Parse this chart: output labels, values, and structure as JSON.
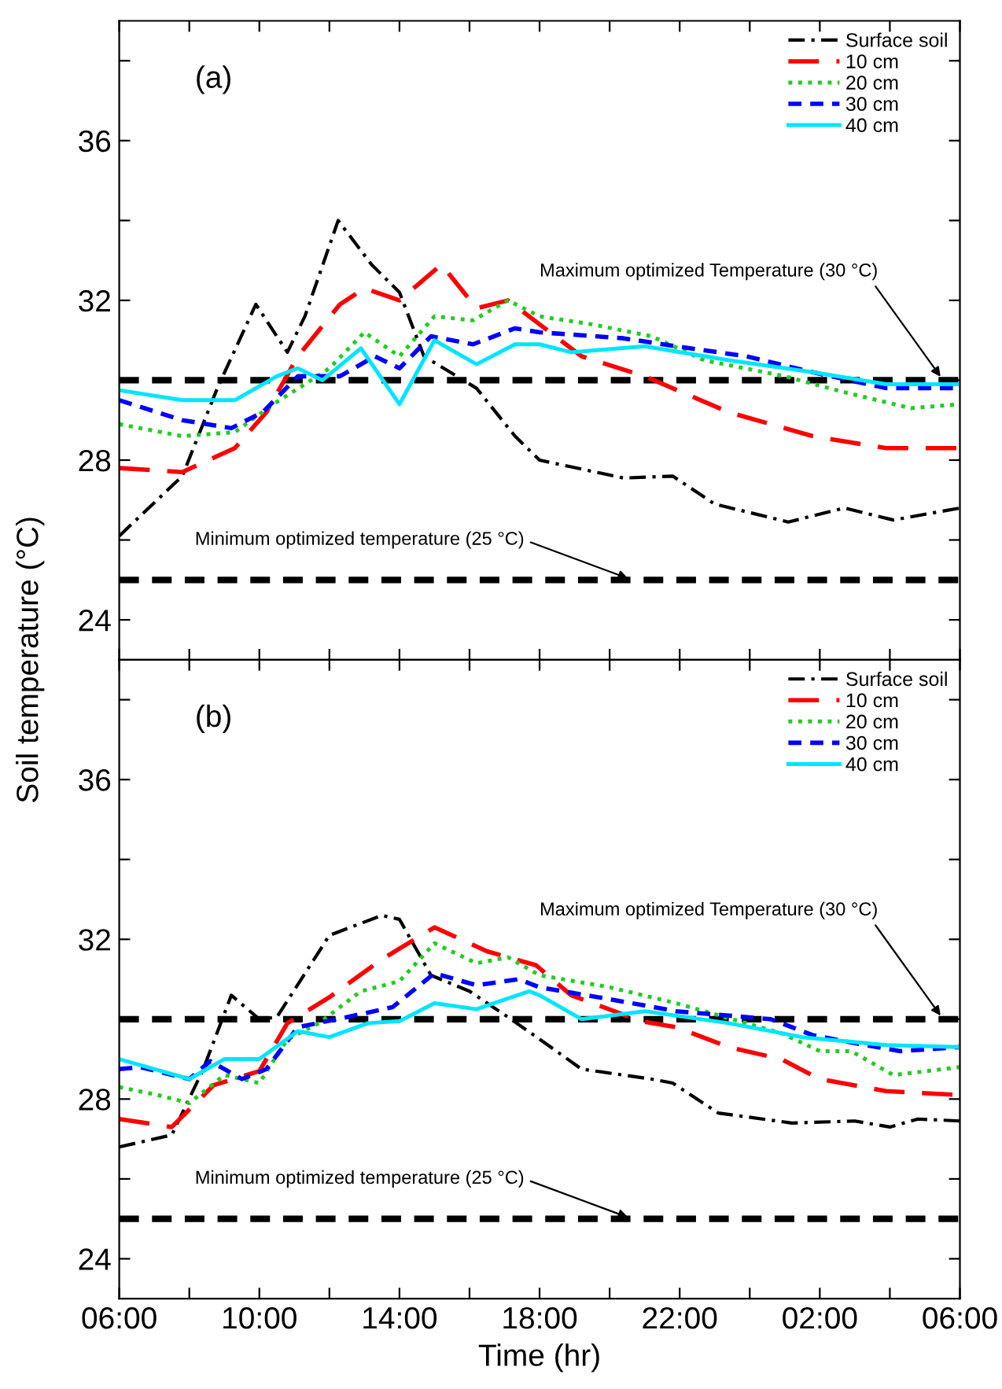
{
  "chart_data": [
    {
      "type": "line",
      "title": "(a)",
      "ylabel": "Soil temperature (°C)",
      "xlim": [
        "2000-01-01T06:00",
        "2000-01-02T06:00"
      ],
      "ylim": [
        23,
        39
      ],
      "xticks": [
        {
          "value": "2000-01-01T06:00",
          "label": null
        },
        {
          "value": "2000-01-01T08:00",
          "label": null
        },
        {
          "value": "2000-01-01T10:00",
          "label": null
        },
        {
          "value": "2000-01-01T12:00",
          "label": null
        },
        {
          "value": "2000-01-01T14:00",
          "label": null
        },
        {
          "value": "2000-01-01T16:00",
          "label": null
        },
        {
          "value": "2000-01-01T18:00",
          "label": null
        },
        {
          "value": "2000-01-01T20:00",
          "label": null
        },
        {
          "value": "2000-01-01T22:00",
          "label": null
        },
        {
          "value": "2000-01-02T00:00",
          "label": null
        },
        {
          "value": "2000-01-02T02:00",
          "label": null
        },
        {
          "value": "2000-01-02T04:00",
          "label": null
        },
        {
          "value": "2000-01-02T06:00",
          "label": null
        }
      ],
      "yticks": [
        24,
        {
          "value": 26,
          "label": null
        },
        28,
        {
          "value": 30,
          "label": null
        },
        32,
        {
          "value": 34,
          "label": null
        },
        36,
        {
          "value": 38,
          "label": null
        }
      ],
      "tick_labels": "y",
      "legend": "top right",
      "grid": false,
      "ref_lines": [
        {
          "axis": "y",
          "value": 30,
          "label": "Maximum optimized Temperature (30 °C)",
          "color": "#000000",
          "line_style": "dashed"
        },
        {
          "axis": "y",
          "value": 25,
          "label": "Minimum optimized temperature (25 °C)",
          "color": "#000000",
          "line_style": "dashed"
        }
      ],
      "series": [
        {
          "name": "Surface soil",
          "color": "#000000",
          "line_style": "dashdot",
          "x": [
            "2000-01-01T06:00",
            "2000-01-01T07:48",
            "2000-01-01T08:48",
            "2000-01-01T09:54",
            "2000-01-01T10:48",
            "2000-01-01T11:18",
            "2000-01-01T12:15",
            "2000-01-01T13:12",
            "2000-01-01T14:00",
            "2000-01-01T14:42",
            "2000-01-01T16:12",
            "2000-01-01T17:18",
            "2000-01-01T18:00",
            "2000-01-01T20:24",
            "2000-01-01T21:48",
            "2000-01-01T23:00",
            "2000-01-02T01:06",
            "2000-01-02T02:42",
            "2000-01-02T04:06",
            "2000-01-02T06:00"
          ],
          "values": [
            26.1,
            27.6,
            29.8,
            31.9,
            30.7,
            31.6,
            34.0,
            32.9,
            32.2,
            30.6,
            29.8,
            28.6,
            28.0,
            27.55,
            27.6,
            26.9,
            26.45,
            26.8,
            26.5,
            26.8
          ]
        },
        {
          "name": "10 cm",
          "color": "#ff0000",
          "line_style": "longdash",
          "x": [
            "2000-01-01T06:00",
            "2000-01-01T07:48",
            "2000-01-01T09:18",
            "2000-01-01T10:12",
            "2000-01-01T11:06",
            "2000-01-01T12:18",
            "2000-01-01T13:00",
            "2000-01-01T14:00",
            "2000-01-01T15:12",
            "2000-01-01T16:12",
            "2000-01-01T17:06",
            "2000-01-01T18:00",
            "2000-01-01T19:12",
            "2000-01-01T21:00",
            "2000-01-01T23:24",
            "2000-01-02T01:48",
            "2000-01-02T03:54",
            "2000-01-02T06:00"
          ],
          "values": [
            27.8,
            27.7,
            28.3,
            29.2,
            30.6,
            31.9,
            32.3,
            32.0,
            32.9,
            31.8,
            32.0,
            31.4,
            30.6,
            30.1,
            29.2,
            28.6,
            28.3,
            28.3
          ]
        },
        {
          "name": "20 cm",
          "color": "#22cc22",
          "line_style": "dotted",
          "x": [
            "2000-01-01T06:00",
            "2000-01-01T07:48",
            "2000-01-01T09:18",
            "2000-01-01T10:24",
            "2000-01-01T11:18",
            "2000-01-01T12:00",
            "2000-01-01T13:00",
            "2000-01-01T14:00",
            "2000-01-01T15:00",
            "2000-01-01T16:06",
            "2000-01-01T17:06",
            "2000-01-01T18:00",
            "2000-01-01T19:30",
            "2000-01-01T21:12",
            "2000-01-01T22:42",
            "2000-01-02T01:00",
            "2000-01-02T02:42",
            "2000-01-02T04:36",
            "2000-01-02T06:00"
          ],
          "values": [
            28.9,
            28.6,
            28.7,
            29.4,
            29.9,
            30.3,
            31.2,
            30.6,
            31.6,
            31.5,
            32.0,
            31.6,
            31.4,
            31.1,
            30.5,
            30.1,
            29.7,
            29.3,
            29.4
          ]
        },
        {
          "name": "30 cm",
          "color": "#0000ff",
          "line_style": "dashed",
          "x": [
            "2000-01-01T06:00",
            "2000-01-01T07:48",
            "2000-01-01T09:12",
            "2000-01-01T10:06",
            "2000-01-01T11:06",
            "2000-01-01T12:18",
            "2000-01-01T13:18",
            "2000-01-01T14:00",
            "2000-01-01T14:54",
            "2000-01-01T16:06",
            "2000-01-01T17:18",
            "2000-01-01T18:00",
            "2000-01-01T20:24",
            "2000-01-01T21:54",
            "2000-01-01T23:54",
            "2000-01-02T01:48",
            "2000-01-02T03:54",
            "2000-01-02T06:00"
          ],
          "values": [
            29.5,
            29.0,
            28.8,
            29.2,
            30.1,
            30.1,
            30.6,
            30.3,
            31.1,
            30.9,
            31.3,
            31.2,
            31.05,
            30.85,
            30.6,
            30.2,
            29.8,
            29.8
          ]
        },
        {
          "name": "40 cm",
          "color": "#00e5ff",
          "line_style": "solid",
          "x": [
            "2000-01-01T06:00",
            "2000-01-01T07:48",
            "2000-01-01T09:18",
            "2000-01-01T10:30",
            "2000-01-01T11:06",
            "2000-01-01T11:48",
            "2000-01-01T12:54",
            "2000-01-01T14:00",
            "2000-01-01T15:00",
            "2000-01-01T16:12",
            "2000-01-01T17:18",
            "2000-01-01T18:00",
            "2000-01-01T18:54",
            "2000-01-01T21:00",
            "2000-01-01T23:24",
            "2000-01-02T01:48",
            "2000-01-02T03:54",
            "2000-01-02T06:00"
          ],
          "values": [
            29.75,
            29.5,
            29.5,
            30.1,
            30.3,
            30.0,
            30.8,
            29.4,
            31.0,
            30.4,
            30.9,
            30.9,
            30.7,
            30.85,
            30.5,
            30.2,
            29.9,
            29.9
          ]
        }
      ]
    },
    {
      "type": "line",
      "title": "(b)",
      "xlabel": "Time (hr)",
      "xlim": [
        "2000-01-01T06:00",
        "2000-01-02T06:00"
      ],
      "ylim": [
        23,
        39
      ],
      "xticks": [
        {
          "value": "2000-01-01T06:00",
          "label": "06:00"
        },
        {
          "value": "2000-01-01T08:00",
          "label": null
        },
        {
          "value": "2000-01-01T10:00",
          "label": "10:00"
        },
        {
          "value": "2000-01-01T12:00",
          "label": null
        },
        {
          "value": "2000-01-01T14:00",
          "label": "14:00"
        },
        {
          "value": "2000-01-01T16:00",
          "label": null
        },
        {
          "value": "2000-01-01T18:00",
          "label": "18:00"
        },
        {
          "value": "2000-01-01T20:00",
          "label": null
        },
        {
          "value": "2000-01-01T22:00",
          "label": "22:00"
        },
        {
          "value": "2000-01-02T00:00",
          "label": null
        },
        {
          "value": "2000-01-02T02:00",
          "label": "02:00"
        },
        {
          "value": "2000-01-02T04:00",
          "label": null
        },
        {
          "value": "2000-01-02T06:00",
          "label": "06:00"
        }
      ],
      "yticks": [
        24,
        {
          "value": 26,
          "label": null
        },
        28,
        {
          "value": 30,
          "label": null
        },
        32,
        {
          "value": 34,
          "label": null
        },
        36,
        {
          "value": 38,
          "label": null
        }
      ],
      "legend": "top right",
      "grid": false,
      "ref_lines": [
        {
          "axis": "y",
          "value": 30,
          "label": "Maximum optimized Temperature (30 °C)",
          "color": "#000000",
          "line_style": "dashed"
        },
        {
          "axis": "y",
          "value": 25,
          "label": "Minimum optimized temperature (25 °C)",
          "color": "#000000",
          "line_style": "dashed"
        }
      ],
      "series": [
        {
          "name": "Surface soil",
          "color": "#000000",
          "line_style": "dashdot",
          "x": [
            "2000-01-01T06:00",
            "2000-01-01T07:30",
            "2000-01-01T08:24",
            "2000-01-01T09:12",
            "2000-01-01T10:00",
            "2000-01-01T10:30",
            "2000-01-01T12:00",
            "2000-01-01T13:30",
            "2000-01-01T14:00",
            "2000-01-01T14:54",
            "2000-01-01T16:00",
            "2000-01-01T17:06",
            "2000-01-01T18:00",
            "2000-01-01T19:12",
            "2000-01-01T21:12",
            "2000-01-01T21:48",
            "2000-01-01T23:06",
            "2000-01-02T01:12",
            "2000-01-02T03:00",
            "2000-01-02T04:00",
            "2000-01-02T04:48",
            "2000-01-02T06:00"
          ],
          "values": [
            26.8,
            27.1,
            28.75,
            30.6,
            30.0,
            30.05,
            32.1,
            32.6,
            32.5,
            31.1,
            30.7,
            30.05,
            29.5,
            28.75,
            28.5,
            28.4,
            27.65,
            27.4,
            27.45,
            27.3,
            27.5,
            27.45
          ]
        },
        {
          "name": "10 cm",
          "color": "#ff0000",
          "line_style": "longdash",
          "x": [
            "2000-01-01T06:00",
            "2000-01-01T07:30",
            "2000-01-01T08:42",
            "2000-01-01T10:00",
            "2000-01-01T10:48",
            "2000-01-01T12:00",
            "2000-01-01T13:30",
            "2000-01-01T15:00",
            "2000-01-01T16:30",
            "2000-01-01T17:54",
            "2000-01-01T18:54",
            "2000-01-01T20:54",
            "2000-01-01T21:54",
            "2000-01-01T23:24",
            "2000-01-02T00:54",
            "2000-01-02T02:00",
            "2000-01-02T03:54",
            "2000-01-02T06:00"
          ],
          "values": [
            27.5,
            27.3,
            28.35,
            28.7,
            29.9,
            30.55,
            31.5,
            32.3,
            31.7,
            31.35,
            30.6,
            29.95,
            29.8,
            29.3,
            29.0,
            28.5,
            28.2,
            28.1
          ]
        },
        {
          "name": "20 cm",
          "color": "#22cc22",
          "line_style": "dotted",
          "x": [
            "2000-01-01T06:00",
            "2000-01-01T07:06",
            "2000-01-01T08:00",
            "2000-01-01T09:00",
            "2000-01-01T10:00",
            "2000-01-01T10:48",
            "2000-01-01T11:42",
            "2000-01-01T12:54",
            "2000-01-01T14:00",
            "2000-01-01T15:00",
            "2000-01-01T16:12",
            "2000-01-01T17:06",
            "2000-01-01T18:00",
            "2000-01-01T20:00",
            "2000-01-01T21:54",
            "2000-01-01T23:42",
            "2000-01-02T00:54",
            "2000-01-02T02:00",
            "2000-01-02T02:54",
            "2000-01-02T04:06",
            "2000-01-02T06:00"
          ],
          "values": [
            28.3,
            28.1,
            27.9,
            28.6,
            28.4,
            29.5,
            29.9,
            30.7,
            30.95,
            31.9,
            31.4,
            31.55,
            31.1,
            30.8,
            30.4,
            29.95,
            29.65,
            29.2,
            29.2,
            28.6,
            28.8
          ]
        },
        {
          "name": "30 cm",
          "color": "#0000ff",
          "line_style": "dashed",
          "x": [
            "2000-01-01T06:00",
            "2000-01-01T06:36",
            "2000-01-01T08:00",
            "2000-01-01T08:36",
            "2000-01-01T09:30",
            "2000-01-01T10:12",
            "2000-01-01T11:06",
            "2000-01-01T12:30",
            "2000-01-01T13:48",
            "2000-01-01T15:00",
            "2000-01-01T16:12",
            "2000-01-01T17:24",
            "2000-01-01T18:00",
            "2000-01-01T20:00",
            "2000-01-01T21:54",
            "2000-01-02T00:36",
            "2000-01-02T01:48",
            "2000-01-02T03:00",
            "2000-01-02T04:18",
            "2000-01-02T06:00"
          ],
          "values": [
            28.75,
            28.8,
            28.5,
            28.95,
            28.5,
            28.75,
            29.8,
            30.05,
            30.3,
            31.15,
            30.85,
            31.0,
            30.8,
            30.5,
            30.2,
            30.0,
            29.6,
            29.4,
            29.2,
            29.3
          ]
        },
        {
          "name": "40 cm",
          "color": "#00e5ff",
          "line_style": "solid",
          "x": [
            "2000-01-01T06:00",
            "2000-01-01T08:00",
            "2000-01-01T09:00",
            "2000-01-01T10:00",
            "2000-01-01T11:06",
            "2000-01-01T12:00",
            "2000-01-01T13:06",
            "2000-01-01T14:00",
            "2000-01-01T15:00",
            "2000-01-01T16:12",
            "2000-01-01T17:42",
            "2000-01-01T18:00",
            "2000-01-01T19:12",
            "2000-01-01T21:00",
            "2000-01-01T23:24",
            "2000-01-02T01:30",
            "2000-01-02T03:54",
            "2000-01-02T06:00"
          ],
          "values": [
            29.0,
            28.5,
            29.0,
            29.0,
            29.7,
            29.55,
            29.9,
            29.95,
            30.4,
            30.25,
            30.7,
            30.6,
            30.0,
            30.2,
            29.9,
            29.55,
            29.35,
            29.3
          ]
        }
      ]
    }
  ]
}
